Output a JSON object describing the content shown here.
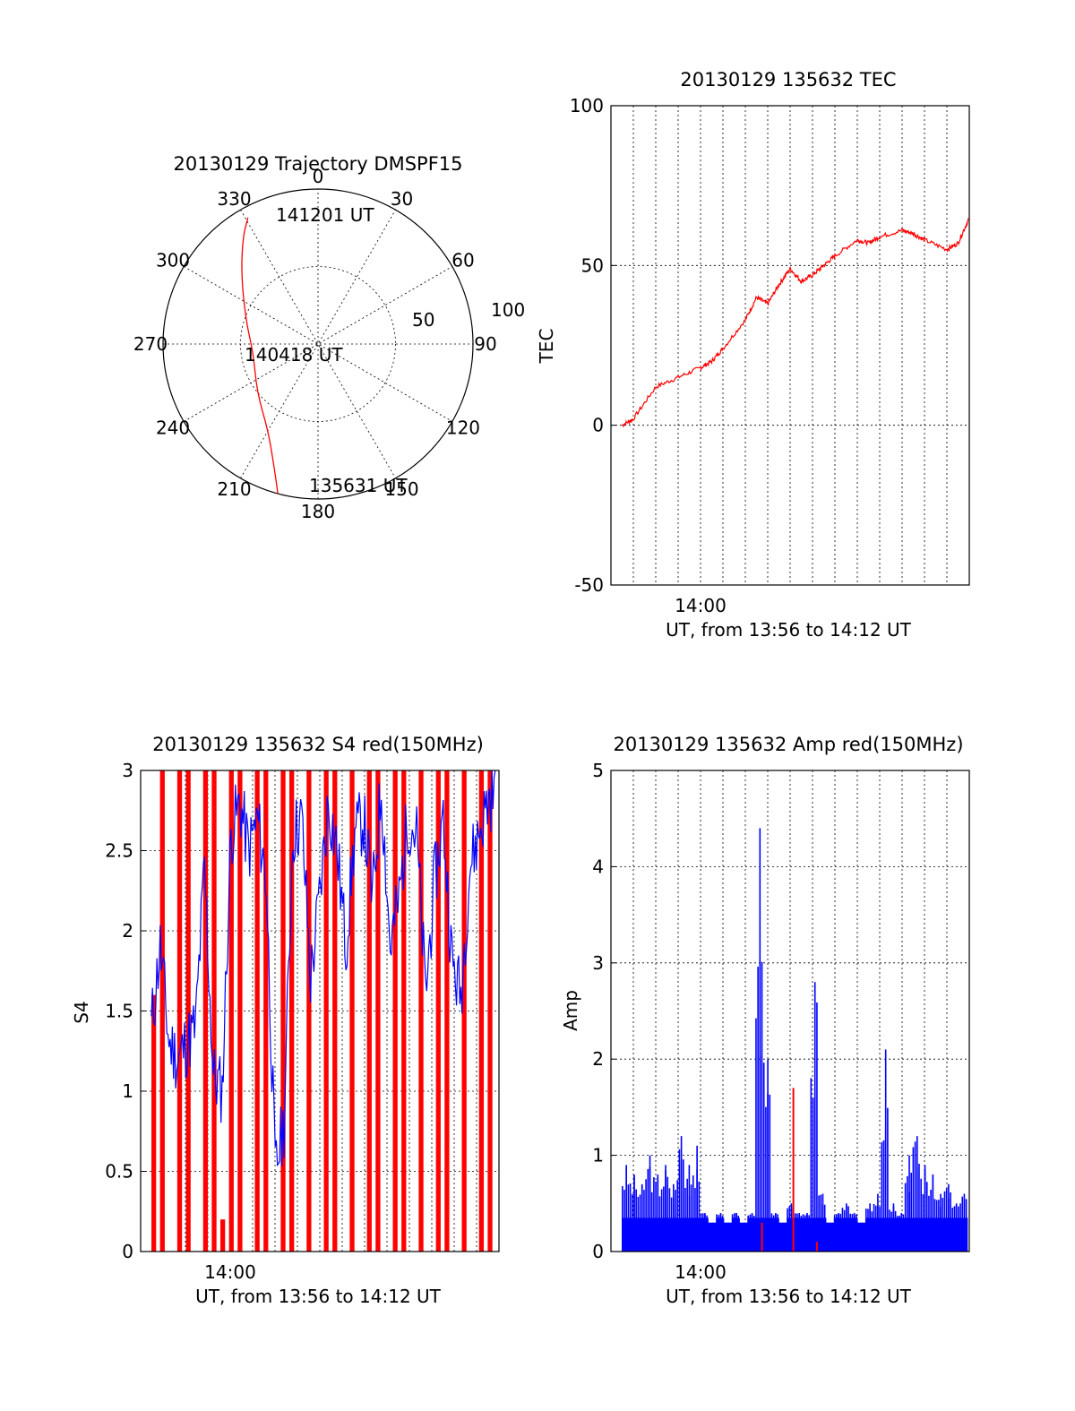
{
  "chart_data": [
    {
      "type": "polar",
      "title": "20130129 Trajectory DMSPF15",
      "angle_labels": [
        "0",
        "30",
        "60",
        "90",
        "120",
        "150",
        "180",
        "210",
        "240",
        "270",
        "300",
        "330"
      ],
      "radial_labels": [
        "50",
        "100"
      ],
      "time_labels": {
        "start": "135631 UT",
        "mid": "140418 UT",
        "end": "141201 UT"
      },
      "trajectory": {
        "color": "#ff0000",
        "points": [
          {
            "az": 195,
            "zen": 90
          },
          {
            "az": 200,
            "zen": 75
          },
          {
            "az": 210,
            "zen": 58
          },
          {
            "az": 232,
            "zen": 45
          },
          {
            "az": 262,
            "zen": 38
          },
          {
            "az": 288,
            "zen": 44
          },
          {
            "az": 312,
            "zen": 60
          },
          {
            "az": 325,
            "zen": 76
          },
          {
            "az": 331,
            "zen": 84
          }
        ]
      }
    },
    {
      "type": "line",
      "title": "20130129 135632 TEC",
      "xlabel": "UT, from 13:56 to 14:12 UT",
      "ylabel": "TEC",
      "xlim": [
        "13:56",
        "14:12"
      ],
      "ylim": [
        -50,
        100
      ],
      "yticks": [
        "-50",
        "0",
        "50",
        "100"
      ],
      "xticks": [
        "14:00"
      ],
      "color": "#ff0000",
      "series": [
        {
          "x": [
            "13:56:30",
            "13:57:00",
            "13:58:00",
            "13:59:00",
            "14:00:00",
            "14:00:30",
            "14:01:00",
            "14:02:00",
            "14:02:30",
            "14:03:00",
            "14:03:30",
            "14:04:00",
            "14:04:30",
            "14:05:00",
            "14:05:30",
            "14:06:00",
            "14:07:00",
            "14:07:30",
            "14:08:00",
            "14:09:00",
            "14:09:30",
            "14:10:00",
            "14:11:00",
            "14:11:30",
            "14:12:00"
          ],
          "values": [
            0,
            2,
            12,
            15,
            18,
            20,
            24,
            33,
            40,
            38,
            44,
            49,
            45,
            47,
            50,
            53,
            58,
            57,
            59,
            61,
            60,
            58,
            55,
            57,
            65
          ]
        }
      ]
    },
    {
      "type": "line",
      "title": "20130129 135632 S4 red(150MHz)",
      "xlabel": "UT, from 13:56 to 14:12 UT",
      "ylabel": "S4",
      "xlim": [
        "13:56",
        "14:12"
      ],
      "ylim": [
        0,
        3
      ],
      "yticks": [
        "0",
        "0.5",
        "1",
        "1.5",
        "2",
        "2.5",
        "3"
      ],
      "xticks": [
        "14:00"
      ],
      "series": [
        {
          "color": "#ff0000",
          "values": [
            1.6,
            3,
            0,
            3,
            3,
            0,
            3,
            3,
            0.2,
            3,
            3,
            0,
            3,
            3,
            0,
            3,
            3,
            0,
            3,
            0,
            3,
            3,
            0,
            3,
            0,
            3,
            3,
            0,
            3,
            3,
            0,
            3,
            0,
            3,
            3,
            0,
            3,
            0,
            3,
            3
          ]
        },
        {
          "color": "#0000ff",
          "values": [
            1.4,
            1.9,
            1.3,
            1.2,
            1.3,
            1.4,
            2.4,
            1.1,
            1.0,
            2.6,
            2.8,
            2.5,
            2.7,
            2.3,
            0.5,
            0.8,
            2.6,
            2.7,
            1.7,
            2.2,
            2.8,
            2.5,
            1.9,
            2.6,
            2.7,
            2.2,
            2.9,
            1.9,
            2.2,
            2.7,
            2.6,
            1.6,
            2.3,
            2.7,
            1.8,
            1.6,
            2.4,
            2.6,
            2.8,
            2.9
          ]
        }
      ]
    },
    {
      "type": "bar",
      "title": "20130129 135632 Amp red(150MHz)",
      "xlabel": "UT, from 13:56 to 14:12 UT",
      "ylabel": "Amp",
      "xlim": [
        "13:56",
        "14:12"
      ],
      "ylim": [
        0,
        5
      ],
      "yticks": [
        "0",
        "1",
        "2",
        "3",
        "4",
        "5"
      ],
      "xticks": [
        "14:00"
      ],
      "series": [
        {
          "color": "#0000ff",
          "values": [
            0.9,
            0.8,
            0.7,
            1.0,
            0.8,
            0.9,
            0.7,
            1.2,
            0.9,
            1.1,
            0.4,
            0.3,
            0.4,
            0.3,
            0.4,
            0.3,
            0.4,
            4.4,
            2.0,
            0.4,
            0.3,
            0.5,
            0.4,
            0.4,
            2.8,
            0.6,
            0.3,
            0.4,
            0.5,
            0.4,
            0.3,
            0.5,
            0.6,
            2.1,
            0.5,
            0.4,
            1.0,
            1.2,
            0.9,
            0.8,
            0.6,
            0.7,
            0.5,
            0.6
          ]
        },
        {
          "color": "#ff0000",
          "values": [
            0,
            0,
            0,
            0,
            0,
            0,
            0,
            0,
            0,
            0,
            0,
            0,
            0,
            0,
            0,
            0,
            0,
            0.3,
            0,
            0,
            0,
            1.7,
            0,
            0,
            0.1,
            0,
            0,
            0,
            0,
            0,
            0,
            0,
            0,
            0,
            0,
            0,
            0,
            0,
            0,
            0,
            0,
            0,
            0,
            0
          ]
        }
      ]
    }
  ]
}
